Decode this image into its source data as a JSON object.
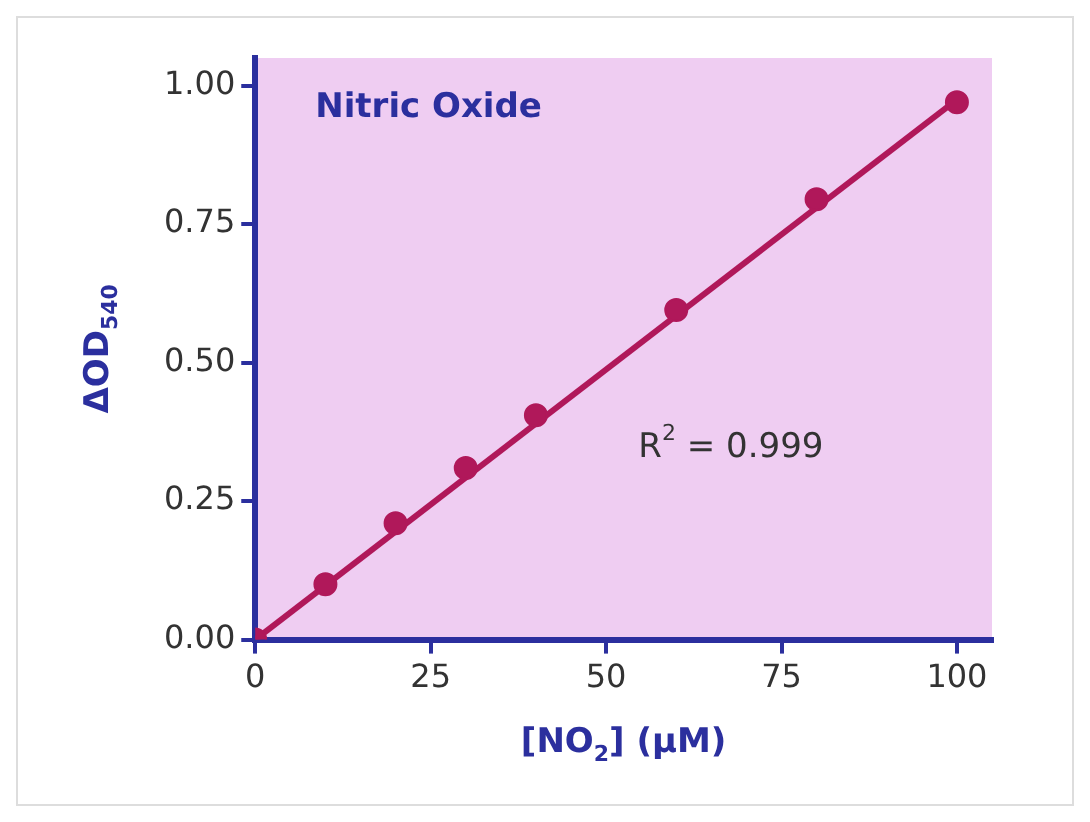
{
  "chart_data": {
    "type": "scatter",
    "xlabel": "[NO$_{2}$] (μM)",
    "ylabel": "ΔOD$_{540}$",
    "annotations": [
      "Nitric Oxide",
      "R$^{2}$ = 0.999"
    ],
    "series": [
      {
        "type": "scatter",
        "marker": "circle",
        "color": "#b0185a",
        "x": [
          0,
          10,
          20,
          30,
          40,
          60,
          80,
          100
        ],
        "values": [
          0,
          0.1,
          0.21,
          0.31,
          0.405,
          0.595,
          0.795,
          0.97
        ]
      },
      {
        "type": "line",
        "marker": "none",
        "color": "#b0185a",
        "x": [
          0,
          100
        ],
        "values": [
          0,
          0.975
        ]
      }
    ],
    "xlim": [
      0,
      105
    ],
    "xticks": [
      0,
      25,
      50,
      75,
      100
    ],
    "ylim": [
      0,
      1.05
    ],
    "yticks": [
      {
        "value": 0,
        "label": "0.00"
      },
      {
        "value": 0.25,
        "label": "0.25"
      },
      {
        "value": 0.5,
        "label": "0.50"
      },
      {
        "value": 0.75,
        "label": "0.75"
      },
      {
        "value": 1,
        "label": "1.00"
      }
    ],
    "grid": false,
    "legend": false,
    "line_style": "solid"
  }
}
